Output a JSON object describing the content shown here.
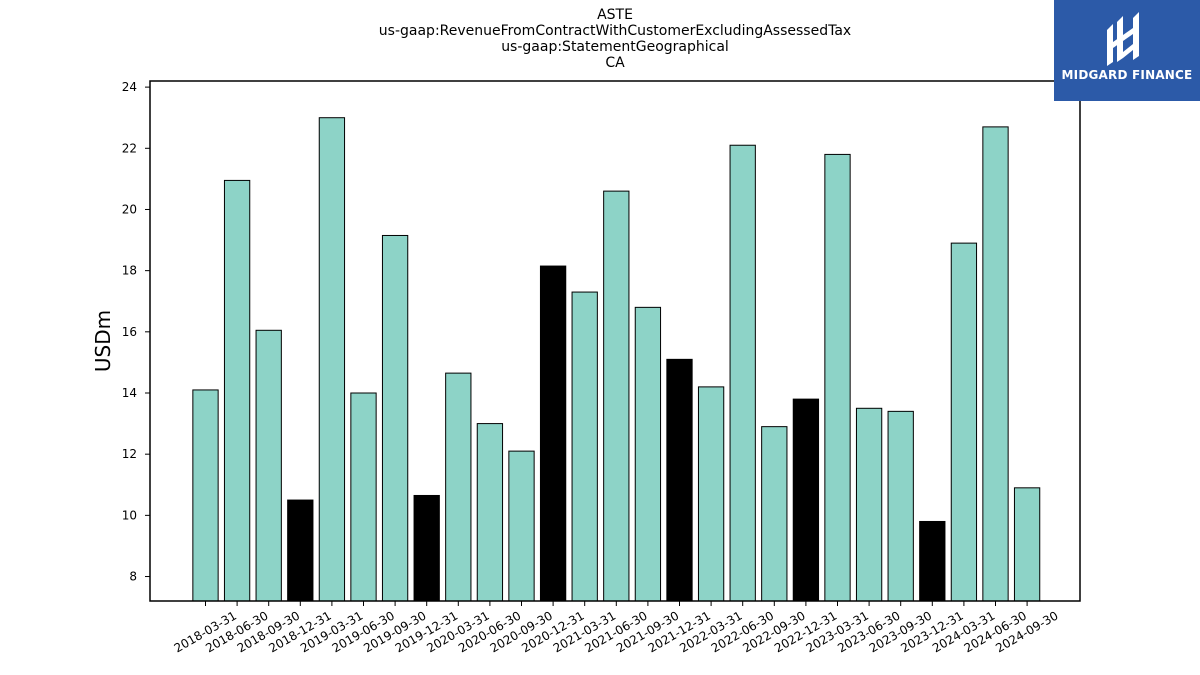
{
  "titles": [
    "ASTE",
    "us-gaap:RevenueFromContractWithCustomerExcludingAssessedTax",
    "us-gaap:StatementGeographical",
    "CA"
  ],
  "logo": {
    "text": "MIDGARD FINANCE",
    "bg": "#2c5aa8",
    "icon": "midgard-logo-icon"
  },
  "colors": {
    "bar": "#8dd3c7",
    "highlight": "#000000"
  },
  "chart_data": {
    "type": "bar",
    "title": "ASTE",
    "ylabel": "USDm",
    "xlabel": "",
    "ylim": [
      7.2,
      24.2
    ],
    "yticks": [
      8,
      10,
      12,
      14,
      16,
      18,
      20,
      22,
      24
    ],
    "categories": [
      "2018-03-31",
      "2018-06-30",
      "2018-09-30",
      "2018-12-31",
      "2019-03-31",
      "2019-06-30",
      "2019-09-30",
      "2019-12-31",
      "2020-03-31",
      "2020-06-30",
      "2020-09-30",
      "2020-12-31",
      "2021-03-31",
      "2021-06-30",
      "2021-09-30",
      "2021-12-31",
      "2022-03-31",
      "2022-06-30",
      "2022-09-30",
      "2022-12-31",
      "2023-03-31",
      "2023-06-30",
      "2023-09-30",
      "2023-12-31",
      "2024-03-31",
      "2024-06-30",
      "2024-09-30"
    ],
    "values": [
      14.1,
      20.95,
      16.05,
      10.5,
      23.0,
      14.0,
      19.15,
      10.65,
      14.65,
      13.0,
      12.1,
      18.15,
      17.3,
      20.6,
      16.8,
      15.1,
      14.2,
      22.1,
      12.9,
      13.8,
      21.8,
      13.5,
      13.4,
      9.8,
      18.9,
      22.7,
      10.9
    ],
    "highlighted": [
      false,
      false,
      false,
      true,
      false,
      false,
      false,
      true,
      false,
      false,
      false,
      true,
      false,
      false,
      false,
      true,
      false,
      false,
      false,
      true,
      false,
      false,
      false,
      true,
      false,
      false,
      false
    ],
    "grid": false
  }
}
